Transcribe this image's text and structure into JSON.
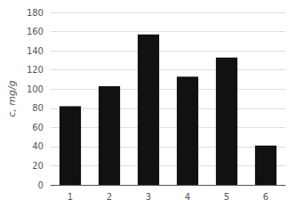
{
  "chart_data": {
    "type": "bar",
    "categories": [
      "1",
      "2",
      "3",
      "4",
      "5",
      "6"
    ],
    "values": [
      82,
      103,
      157,
      113,
      133,
      41
    ],
    "color": "#111111",
    "ylabel": "c, mg/g",
    "ylim": [
      0,
      180
    ],
    "yticks": [
      0,
      20,
      40,
      60,
      80,
      100,
      120,
      140,
      160,
      180
    ],
    "grid": true
  }
}
